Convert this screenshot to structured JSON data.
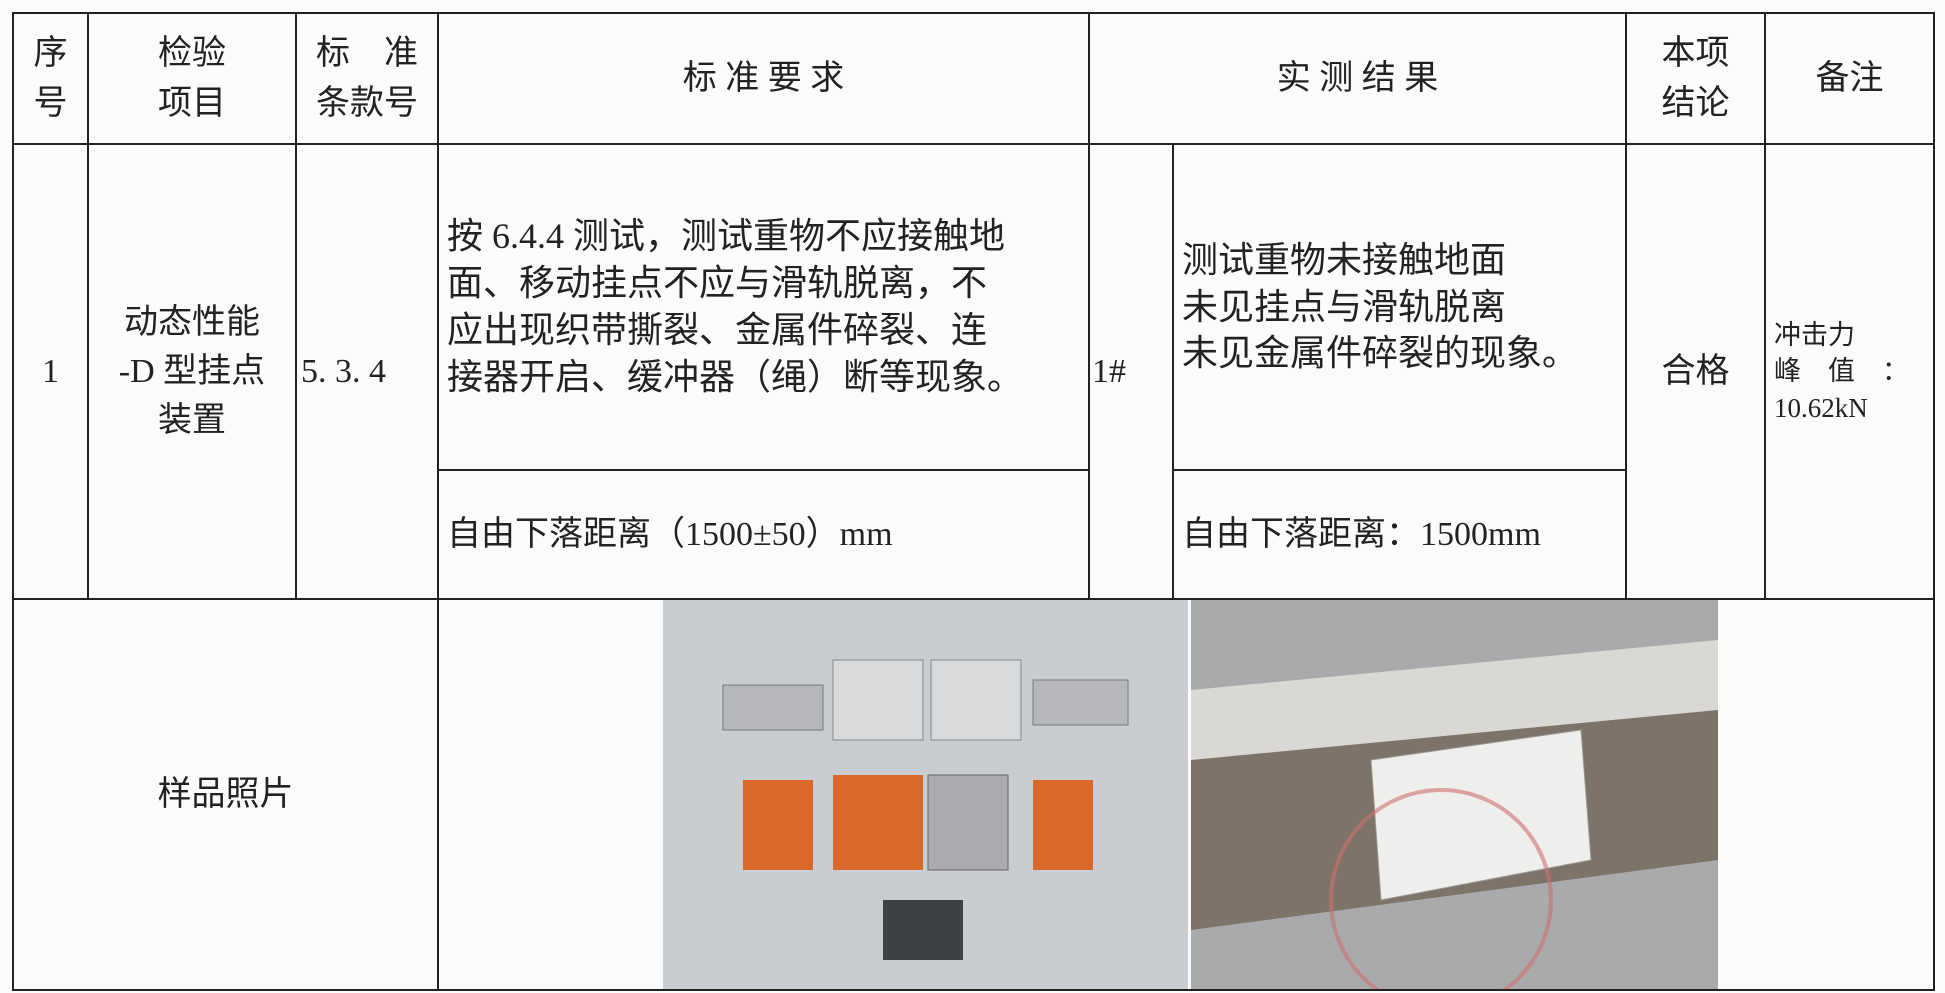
{
  "table": {
    "header": [
      [
        "序",
        "号"
      ],
      [
        "检验",
        "项目"
      ],
      [
        "标　准",
        "条款号"
      ],
      [
        "标 准 要 求"
      ],
      [
        "实 测 结 果"
      ],
      [
        "本项",
        "结论"
      ],
      [
        "备注"
      ]
    ],
    "row": {
      "seq": "1",
      "item": [
        "动态性能",
        "-D 型挂点",
        "装置"
      ],
      "clause": "5. 3. 4",
      "requirement": [
        "按 6.4.4 测试，测试重物不应接触地",
        "面、移动挂点不应与滑轨脱离，不",
        "应出现织带撕裂、金属件碎裂、连",
        "接器开启、缓冲器（绳）断等现象。"
      ],
      "requirement_2": "自由下落距离（1500±50）mm",
      "sample": "1#",
      "result": [
        "测试重物未接触地面",
        "未见挂点与滑轨脱离",
        "未见金属件碎裂的现象。"
      ],
      "result_2": "自由下落距离：1500mm",
      "conclusion": "合格",
      "remark": [
        "冲击力",
        "峰　值　：",
        "10.62kN"
      ]
    },
    "photo_label": "样品照片"
  }
}
